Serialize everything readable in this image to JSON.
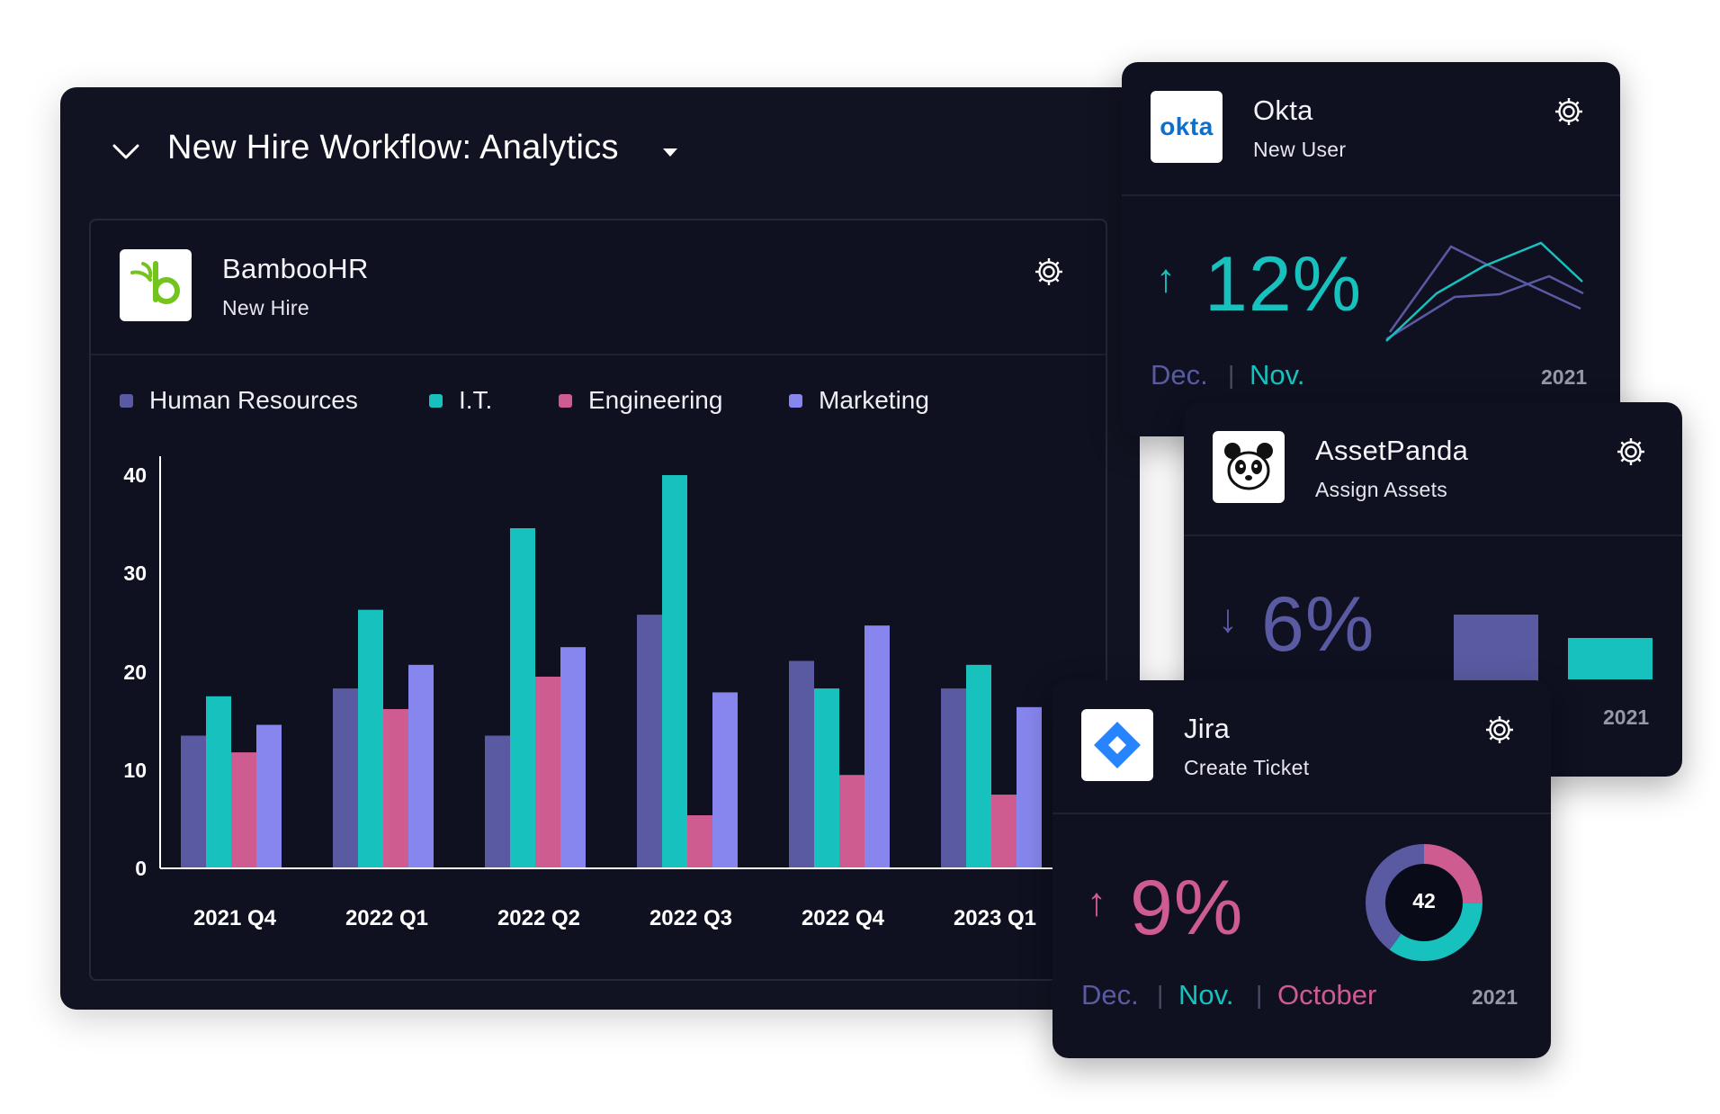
{
  "main_panel": {
    "title": "New Hire Workflow: Analytics",
    "collapse_icon": "chevron-down-icon",
    "title_dropdown_icon": "caret-down-icon"
  },
  "bamboo": {
    "name": "BambooHR",
    "subtitle": "New Hire",
    "logo_icon": "bamboohr-logo-icon",
    "settings_icon": "gear-icon"
  },
  "chart_data": {
    "type": "bar",
    "categories": [
      "2021 Q4",
      "2022 Q1",
      "2022 Q2",
      "2022 Q3",
      "2022 Q4",
      "2023 Q1"
    ],
    "y_ticks": [
      "40",
      "30",
      "20",
      "10",
      "0"
    ],
    "ylim": [
      0,
      40
    ],
    "series": [
      {
        "name": "Human Resources",
        "color": "#5a5aa2",
        "values": [
          13.5,
          18.3,
          13.5,
          25.8,
          21.1,
          18.3
        ]
      },
      {
        "name": "I.T.",
        "color": "#17c1bd",
        "values": [
          17.5,
          26.3,
          34.6,
          40.0,
          18.3,
          20.7
        ]
      },
      {
        "name": "Engineering",
        "color": "#cf5c91",
        "values": [
          11.8,
          16.2,
          19.5,
          5.4,
          9.5,
          7.5
        ]
      },
      {
        "name": "Marketing",
        "color": "#8686ee",
        "values": [
          14.6,
          20.7,
          22.5,
          17.9,
          24.7,
          16.4
        ]
      }
    ],
    "title": "",
    "xlabel": "",
    "ylabel": ""
  },
  "okta": {
    "name": "Okta",
    "subtitle": "New User",
    "logo_text": "okta",
    "settings_icon": "gear-icon",
    "trend_icon": "arrow-up-icon",
    "trend_arrow": "↑",
    "percent": "12%",
    "percent_color": "#17c1bd",
    "months": [
      "Dec.",
      "Nov."
    ],
    "separator": "|",
    "year": "2021",
    "line_chart": {
      "type": "line",
      "x": [
        0,
        1,
        2,
        3
      ],
      "series": [
        {
          "name": "Dec.",
          "color": "#5a5aa2",
          "values": [
            0,
            12,
            8,
            4
          ]
        },
        {
          "name": "Nov.",
          "color": "#17c1bd",
          "values": [
            0,
            6,
            10,
            6
          ]
        }
      ]
    }
  },
  "assetpanda": {
    "name": "AssetPanda",
    "subtitle": "Assign Assets",
    "logo_icon": "panda-logo-icon",
    "settings_icon": "gear-icon",
    "trend_icon": "arrow-down-icon",
    "trend_arrow": "↓",
    "percent": "6%",
    "percent_color": "#5a5aa2",
    "year": "2021",
    "bar_chart": {
      "type": "bar",
      "categories": [
        "Dec.",
        "Nov."
      ],
      "values": [
        100,
        66
      ],
      "colors": [
        "#5a5aa2",
        "#17c1bd"
      ]
    }
  },
  "jira": {
    "name": "Jira",
    "subtitle": "Create Ticket",
    "logo_icon": "jira-logo-icon",
    "settings_icon": "gear-icon",
    "trend_icon": "arrow-up-icon",
    "trend_arrow": "↑",
    "percent": "9%",
    "percent_color": "#cf5c91",
    "months": [
      "Dec.",
      "Nov.",
      "October"
    ],
    "separator": "|",
    "year": "2021",
    "donut_chart": {
      "type": "pie",
      "center_label": "42",
      "segments": [
        {
          "name": "Dec.",
          "color": "#5a5aa2",
          "value": 40
        },
        {
          "name": "Nov.",
          "color": "#17c1bd",
          "value": 35
        },
        {
          "name": "October",
          "color": "#cf5c91",
          "value": 25
        }
      ]
    }
  }
}
